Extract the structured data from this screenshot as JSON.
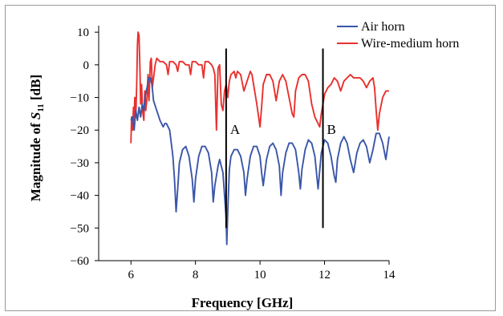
{
  "chart_data": {
    "type": "line",
    "title": "",
    "xlabel": "Frequency [GHz]",
    "ylabel_prefix": "Magnitude of ",
    "ylabel_symbol": "S",
    "ylabel_subscript": "11",
    "ylabel_suffix": " [dB]",
    "xlim": [
      5,
      14
    ],
    "ylim": [
      -60,
      12
    ],
    "x_ticks": [
      6,
      8,
      10,
      12,
      14
    ],
    "y_ticks": [
      10,
      0,
      -10,
      -20,
      -30,
      -40,
      -50,
      -60
    ],
    "y_tick_labels": [
      "10",
      "0",
      "−10",
      "−20",
      "−30",
      "−40",
      "−50",
      "−60"
    ],
    "grid": false,
    "legend_position": "top-right",
    "series": [
      {
        "name": "Air horn",
        "color": "#3a56a8",
        "points": [
          [
            6.0,
            -17
          ],
          [
            6.05,
            -16
          ],
          [
            6.1,
            -20
          ],
          [
            6.15,
            -14
          ],
          [
            6.2,
            -17
          ],
          [
            6.25,
            -13
          ],
          [
            6.3,
            -16
          ],
          [
            6.35,
            -12
          ],
          [
            6.4,
            -14
          ],
          [
            6.45,
            -9
          ],
          [
            6.5,
            -7
          ],
          [
            6.55,
            -4
          ],
          [
            6.6,
            -4
          ],
          [
            6.65,
            -6
          ],
          [
            6.7,
            -11
          ],
          [
            6.8,
            -14
          ],
          [
            6.9,
            -17
          ],
          [
            7.0,
            -19
          ],
          [
            7.05,
            -18
          ],
          [
            7.1,
            -18
          ],
          [
            7.2,
            -20
          ],
          [
            7.3,
            -28
          ],
          [
            7.35,
            -35
          ],
          [
            7.4,
            -45
          ],
          [
            7.45,
            -38
          ],
          [
            7.5,
            -30
          ],
          [
            7.6,
            -26
          ],
          [
            7.7,
            -25
          ],
          [
            7.8,
            -28
          ],
          [
            7.9,
            -35
          ],
          [
            7.95,
            -42
          ],
          [
            8.0,
            -35
          ],
          [
            8.1,
            -28
          ],
          [
            8.2,
            -25
          ],
          [
            8.3,
            -25
          ],
          [
            8.4,
            -27
          ],
          [
            8.5,
            -33
          ],
          [
            8.55,
            -42
          ],
          [
            8.6,
            -37
          ],
          [
            8.7,
            -31
          ],
          [
            8.75,
            -29
          ],
          [
            8.8,
            -31
          ],
          [
            8.85,
            -33
          ],
          [
            8.9,
            -40
          ],
          [
            8.95,
            -47
          ],
          [
            8.97,
            -55
          ],
          [
            9.0,
            -45
          ],
          [
            9.05,
            -32
          ],
          [
            9.1,
            -28
          ],
          [
            9.2,
            -26
          ],
          [
            9.3,
            -26
          ],
          [
            9.4,
            -28
          ],
          [
            9.5,
            -33
          ],
          [
            9.55,
            -40
          ],
          [
            9.6,
            -35
          ],
          [
            9.7,
            -28
          ],
          [
            9.8,
            -25
          ],
          [
            9.9,
            -25
          ],
          [
            10.0,
            -28
          ],
          [
            10.05,
            -33
          ],
          [
            10.1,
            -37
          ],
          [
            10.2,
            -29
          ],
          [
            10.3,
            -25
          ],
          [
            10.4,
            -24
          ],
          [
            10.5,
            -26
          ],
          [
            10.6,
            -31
          ],
          [
            10.65,
            -40
          ],
          [
            10.7,
            -33
          ],
          [
            10.8,
            -27
          ],
          [
            10.9,
            -24
          ],
          [
            11.0,
            -24
          ],
          [
            11.1,
            -26
          ],
          [
            11.2,
            -33
          ],
          [
            11.25,
            -38
          ],
          [
            11.3,
            -32
          ],
          [
            11.4,
            -26
          ],
          [
            11.5,
            -23
          ],
          [
            11.6,
            -24
          ],
          [
            11.7,
            -28
          ],
          [
            11.8,
            -38
          ],
          [
            11.9,
            -27
          ],
          [
            12.0,
            -23
          ],
          [
            12.1,
            -24
          ],
          [
            12.2,
            -28
          ],
          [
            12.3,
            -34
          ],
          [
            12.35,
            -36
          ],
          [
            12.4,
            -29
          ],
          [
            12.5,
            -24
          ],
          [
            12.6,
            -22
          ],
          [
            12.7,
            -24
          ],
          [
            12.8,
            -29
          ],
          [
            12.9,
            -33
          ],
          [
            13.0,
            -27
          ],
          [
            13.1,
            -24
          ],
          [
            13.2,
            -23
          ],
          [
            13.3,
            -25
          ],
          [
            13.4,
            -30
          ],
          [
            13.5,
            -26
          ],
          [
            13.6,
            -21
          ],
          [
            13.7,
            -21
          ],
          [
            13.8,
            -24
          ],
          [
            13.9,
            -29
          ],
          [
            14.0,
            -22
          ]
        ]
      },
      {
        "name": "Wire-medium horn",
        "color": "#e8312e",
        "points": [
          [
            6.0,
            -24
          ],
          [
            6.02,
            -16
          ],
          [
            6.05,
            -20
          ],
          [
            6.08,
            -13
          ],
          [
            6.1,
            -17
          ],
          [
            6.12,
            -10
          ],
          [
            6.15,
            -16
          ],
          [
            6.18,
            -5
          ],
          [
            6.2,
            6
          ],
          [
            6.22,
            10
          ],
          [
            6.25,
            9
          ],
          [
            6.28,
            -2
          ],
          [
            6.3,
            -12
          ],
          [
            6.33,
            -6
          ],
          [
            6.36,
            -14
          ],
          [
            6.4,
            -17
          ],
          [
            6.43,
            -8
          ],
          [
            6.46,
            -14
          ],
          [
            6.5,
            -10
          ],
          [
            6.53,
            -3
          ],
          [
            6.56,
            -11
          ],
          [
            6.6,
            1
          ],
          [
            6.63,
            2
          ],
          [
            6.66,
            -7
          ],
          [
            6.7,
            -4
          ],
          [
            6.75,
            0
          ],
          [
            6.8,
            2
          ],
          [
            6.9,
            1
          ],
          [
            7.0,
            1
          ],
          [
            7.1,
            0
          ],
          [
            7.15,
            -3
          ],
          [
            7.2,
            1
          ],
          [
            7.3,
            1
          ],
          [
            7.4,
            0
          ],
          [
            7.45,
            -2
          ],
          [
            7.5,
            1
          ],
          [
            7.6,
            1
          ],
          [
            7.7,
            0
          ],
          [
            7.8,
            0
          ],
          [
            7.85,
            -3
          ],
          [
            7.9,
            1
          ],
          [
            8.0,
            1
          ],
          [
            8.1,
            0
          ],
          [
            8.2,
            0
          ],
          [
            8.25,
            -4
          ],
          [
            8.3,
            1
          ],
          [
            8.4,
            1
          ],
          [
            8.5,
            0
          ],
          [
            8.55,
            -1
          ],
          [
            8.6,
            -3
          ],
          [
            8.65,
            -20
          ],
          [
            8.7,
            -1
          ],
          [
            8.75,
            0
          ],
          [
            8.8,
            -12
          ],
          [
            8.85,
            -14
          ],
          [
            8.9,
            -8
          ],
          [
            8.95,
            -6
          ],
          [
            9.0,
            -10
          ],
          [
            9.05,
            -5
          ],
          [
            9.1,
            -3
          ],
          [
            9.2,
            -2
          ],
          [
            9.25,
            -4
          ],
          [
            9.3,
            -2
          ],
          [
            9.4,
            -3
          ],
          [
            9.5,
            -8
          ],
          [
            9.6,
            -5
          ],
          [
            9.7,
            -2
          ],
          [
            9.75,
            -3
          ],
          [
            9.8,
            -6
          ],
          [
            9.9,
            -12
          ],
          [
            10.0,
            -19
          ],
          [
            10.05,
            -13
          ],
          [
            10.1,
            -6
          ],
          [
            10.2,
            -3
          ],
          [
            10.3,
            -3
          ],
          [
            10.4,
            -5
          ],
          [
            10.5,
            -11
          ],
          [
            10.6,
            -5
          ],
          [
            10.7,
            -3
          ],
          [
            10.8,
            -5
          ],
          [
            10.9,
            -10
          ],
          [
            11.0,
            -15
          ],
          [
            11.05,
            -16
          ],
          [
            11.1,
            -8
          ],
          [
            11.2,
            -4
          ],
          [
            11.3,
            -3
          ],
          [
            11.4,
            -3
          ],
          [
            11.5,
            -5
          ],
          [
            11.6,
            -12
          ],
          [
            11.7,
            -16
          ],
          [
            11.8,
            -18
          ],
          [
            11.85,
            -19
          ],
          [
            11.9,
            -15
          ],
          [
            12.0,
            -9
          ],
          [
            12.1,
            -7
          ],
          [
            12.2,
            -6
          ],
          [
            12.3,
            -4
          ],
          [
            12.4,
            -5
          ],
          [
            12.5,
            -8
          ],
          [
            12.6,
            -5
          ],
          [
            12.7,
            -4
          ],
          [
            12.8,
            -3
          ],
          [
            12.9,
            -4
          ],
          [
            13.0,
            -4
          ],
          [
            13.1,
            -4
          ],
          [
            13.2,
            -5
          ],
          [
            13.3,
            -7
          ],
          [
            13.4,
            -5
          ],
          [
            13.5,
            -4
          ],
          [
            13.55,
            -7
          ],
          [
            13.6,
            -14
          ],
          [
            13.65,
            -20
          ],
          [
            13.7,
            -15
          ],
          [
            13.8,
            -10
          ],
          [
            13.9,
            -8
          ],
          [
            14.0,
            -8
          ]
        ]
      }
    ],
    "markers": [
      {
        "label": "A",
        "x": 8.95,
        "y_from": -50,
        "y_to": 5
      },
      {
        "label": "B",
        "x": 11.95,
        "y_from": -50,
        "y_to": 5
      }
    ]
  }
}
